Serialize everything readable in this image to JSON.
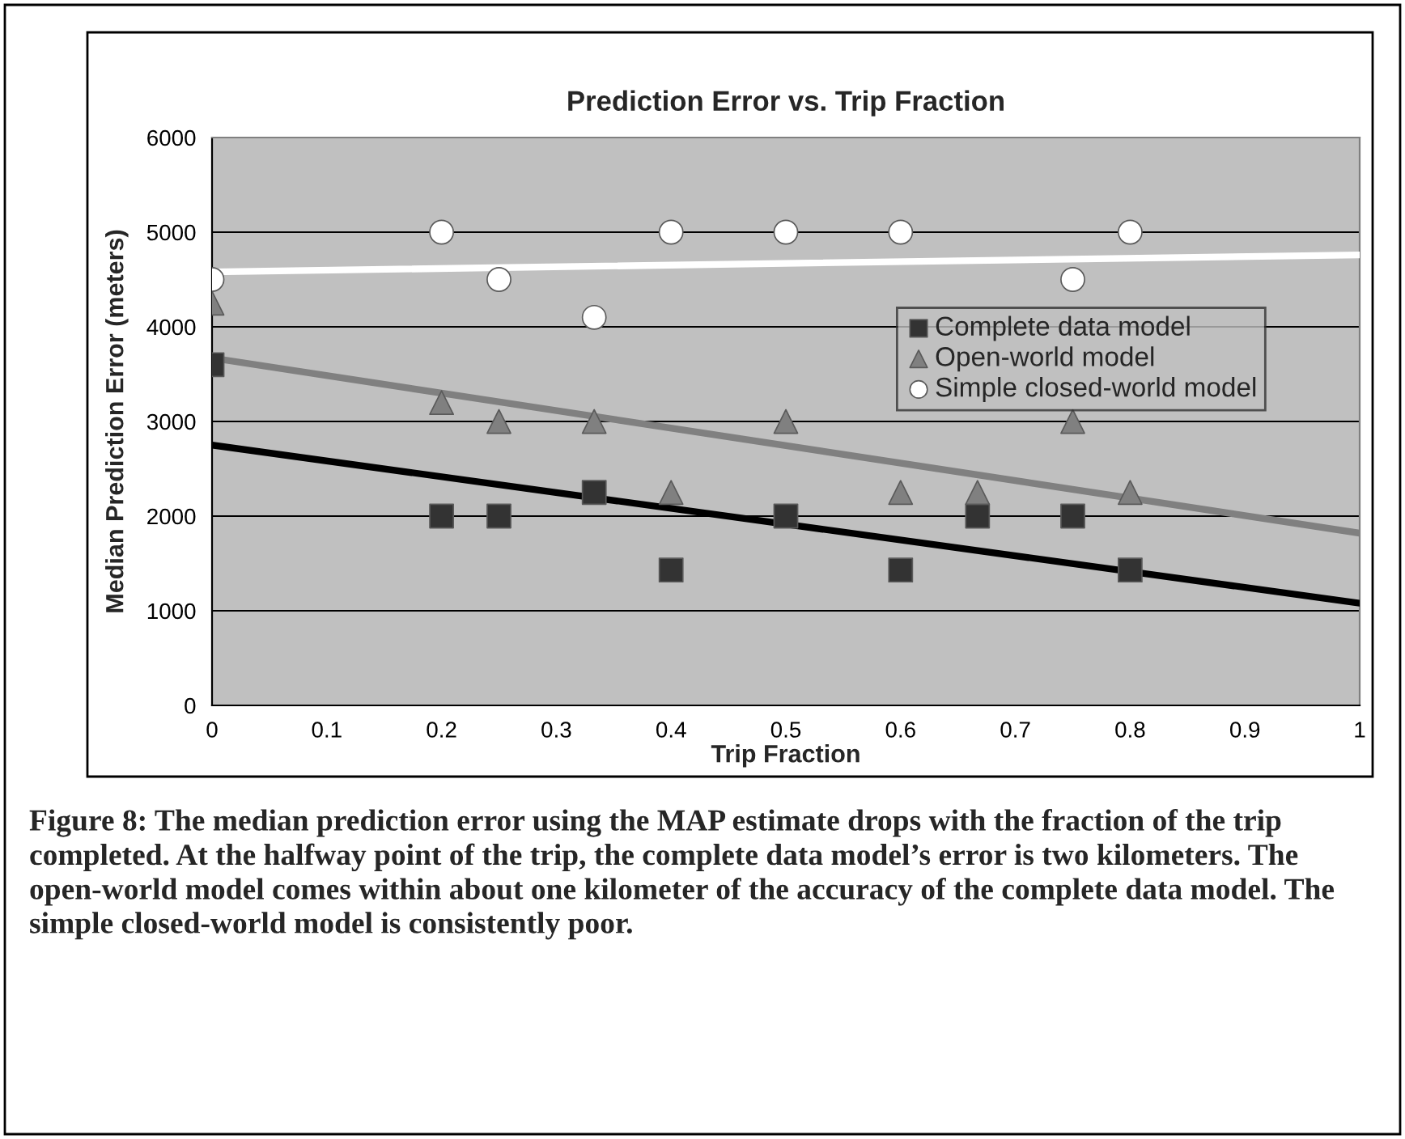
{
  "chart_data": {
    "type": "scatter",
    "title": "Prediction Error vs. Trip Fraction",
    "xlabel": "Trip Fraction",
    "ylabel": "Median Prediction Error (meters)",
    "xlim": [
      0,
      1
    ],
    "xticks": [
      0,
      0.1,
      0.2,
      0.3,
      0.4,
      0.5,
      0.6,
      0.7,
      0.8,
      0.9,
      1
    ],
    "ylim": [
      0,
      6000
    ],
    "yticks": [
      0,
      1000,
      2000,
      3000,
      4000,
      5000,
      6000
    ],
    "grid": "y",
    "legend": "center right",
    "series": [
      {
        "name": "Complete data model",
        "marker": "square",
        "color": "#333333",
        "x": [
          0,
          0.2,
          0.25,
          0.333,
          0.4,
          0.5,
          0.6,
          0.667,
          0.75,
          0.8
        ],
        "values": [
          3600,
          2000,
          2000,
          2250,
          1430,
          2000,
          1430,
          2000,
          2000,
          1430
        ]
      },
      {
        "name": "Open-world model",
        "marker": "triangle",
        "color": "#808080",
        "x": [
          0,
          0.2,
          0.25,
          0.333,
          0.4,
          0.5,
          0.6,
          0.667,
          0.75,
          0.8
        ],
        "values": [
          4250,
          3200,
          3000,
          3000,
          2250,
          3000,
          2250,
          2250,
          3000,
          2250
        ]
      },
      {
        "name": "Simple closed-world model",
        "marker": "circle",
        "color": "#ffffff",
        "x": [
          0,
          0.2,
          0.25,
          0.333,
          0.4,
          0.5,
          0.6,
          0.75,
          0.8
        ],
        "values": [
          4500,
          5000,
          4500,
          4100,
          5000,
          5000,
          5000,
          4500,
          5000
        ]
      },
      {
        "type": "line",
        "line_style": "solid",
        "color": "#000000",
        "x": [
          0,
          1
        ],
        "values": [
          2750,
          1080
        ]
      },
      {
        "type": "line",
        "line_style": "solid",
        "color": "#808080",
        "x": [
          0,
          1
        ],
        "values": [
          3670,
          1820
        ]
      },
      {
        "type": "line",
        "line_style": "solid",
        "color": "#ffffff",
        "x": [
          0,
          1
        ],
        "values": [
          4580,
          4760
        ]
      }
    ],
    "annotations": [
      "Figure 8: The median prediction error using the MAP estimate drops with the fraction of the trip completed. At the halfway point of the trip, the complete data model’s error is two kilometers. The open-world model comes within about one kilometer of the accuracy of the complete data model. The simple closed-world model is consistently poor."
    ]
  }
}
